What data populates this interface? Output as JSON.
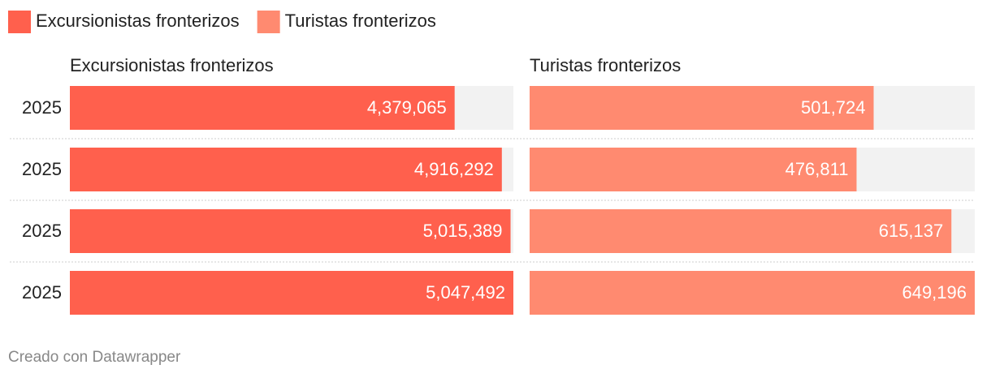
{
  "chart_data": {
    "type": "bar",
    "categories": [
      "2025",
      "2025",
      "2025",
      "2025"
    ],
    "series": [
      {
        "name": "Excursionistas fronterizos",
        "color": "#ff604d",
        "values": [
          4379065,
          4916292,
          5015389,
          5047492
        ],
        "value_labels": [
          "4,379,065",
          "4,916,292",
          "5,015,389",
          "5,047,492"
        ]
      },
      {
        "name": "Turistas fronterizos",
        "color": "#ff8a70",
        "values": [
          501724,
          476811,
          615137,
          649196
        ],
        "value_labels": [
          "501,724",
          "476,811",
          "615,137",
          "649,196"
        ]
      }
    ],
    "source": "Creado con Datawrapper"
  }
}
